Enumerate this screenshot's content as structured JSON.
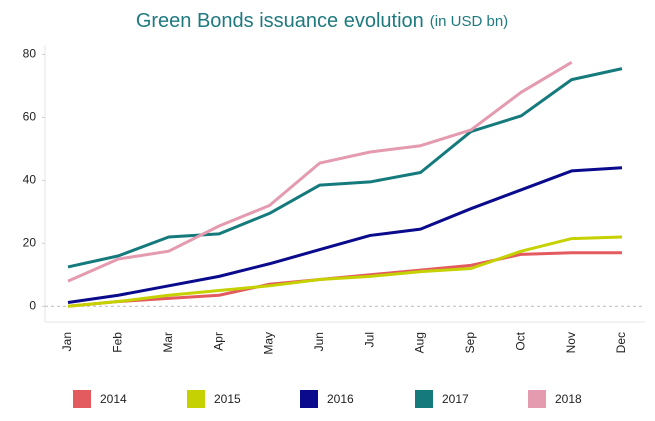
{
  "chart_data": {
    "type": "line",
    "title": "Green Bonds issuance evolution",
    "subtitle": "(in USD bn)",
    "categories": [
      "Jan",
      "Feb",
      "Mar",
      "Apr",
      "May",
      "Jun",
      "Jul",
      "Aug",
      "Sep",
      "Oct",
      "Nov",
      "Dec"
    ],
    "series": [
      {
        "name": "2014",
        "color": "#e35a5f",
        "values": [
          0,
          1.5,
          2.5,
          3.5,
          7,
          8.5,
          10,
          11.5,
          13,
          16.5,
          17,
          17
        ]
      },
      {
        "name": "2015",
        "color": "#c5d100",
        "values": [
          0,
          1.5,
          3.5,
          5,
          6.5,
          8.5,
          9.5,
          11,
          12,
          17.5,
          21.5,
          22
        ]
      },
      {
        "name": "2016",
        "color": "#0a0a8c",
        "values": [
          1.2,
          3.5,
          6.5,
          9.5,
          13.5,
          18,
          22.5,
          24.5,
          31,
          37,
          43,
          44
        ]
      },
      {
        "name": "2017",
        "color": "#157a7c",
        "values": [
          12.5,
          16,
          22,
          23,
          29.5,
          38.5,
          39.5,
          42.5,
          55.5,
          60.5,
          72,
          75.5
        ]
      },
      {
        "name": "2018",
        "color": "#e49aaf",
        "values": [
          8,
          15,
          17.5,
          25.5,
          32,
          45.5,
          49,
          51,
          56,
          68,
          77.5,
          null
        ]
      }
    ],
    "ylim": [
      -5,
      83
    ],
    "yticks": [
      0,
      20,
      40,
      60,
      80
    ],
    "grid": false,
    "legend": "bottom"
  }
}
